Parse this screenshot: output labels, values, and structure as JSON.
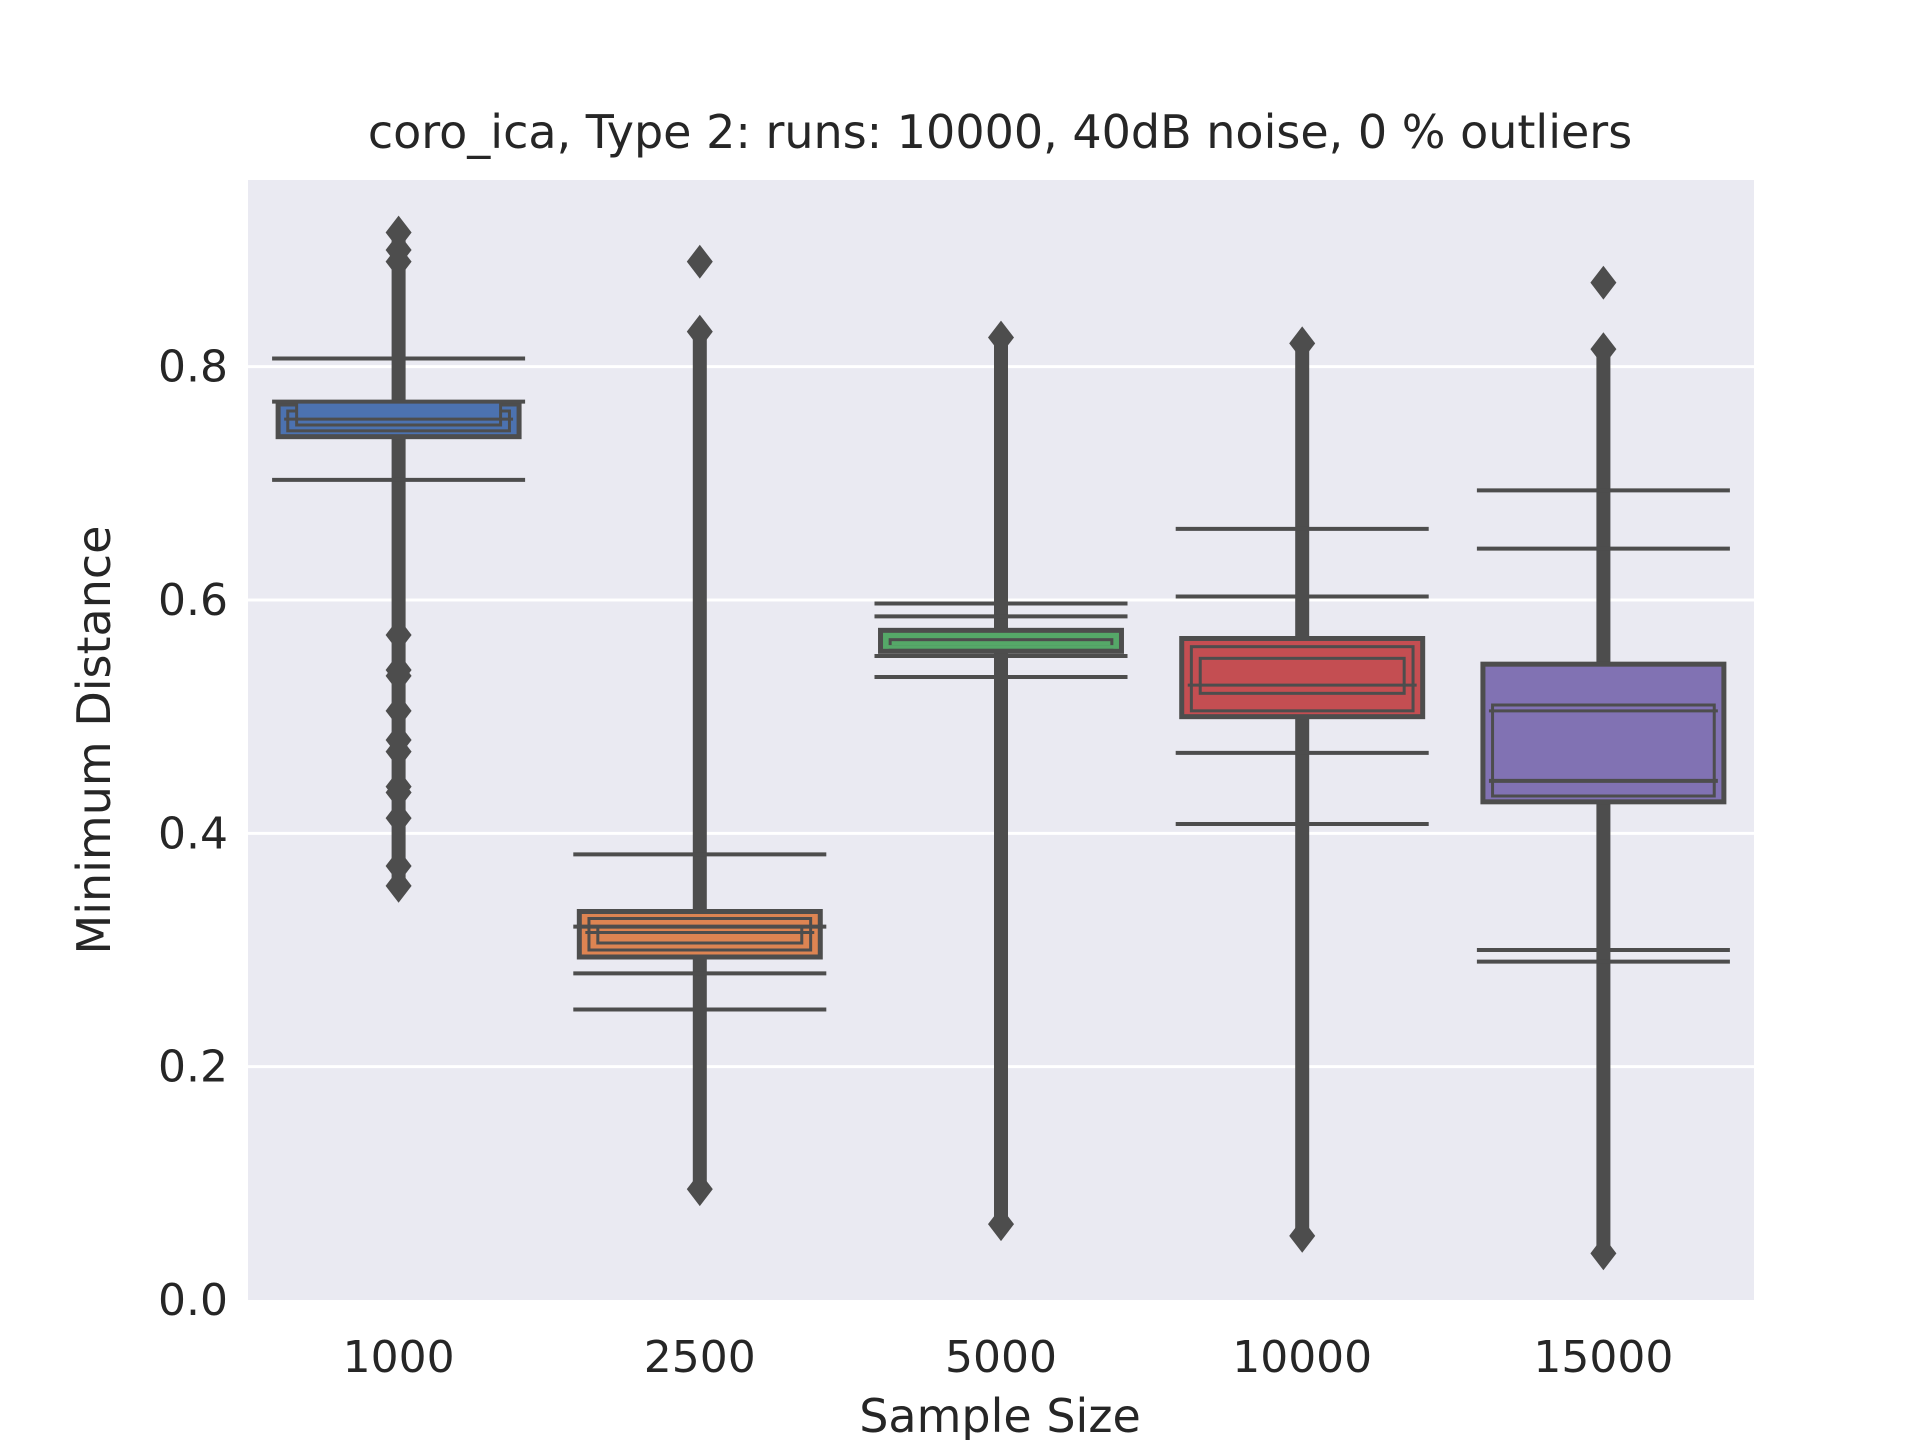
{
  "chart_data": {
    "type": "boxen",
    "title": "coro_ica,  Type 2:  runs: 10000, 40dB noise, 0 % outliers",
    "xlabel": "Sample Size",
    "ylabel": "Minimum Distance",
    "ylim": [
      0.0,
      0.96
    ],
    "yticks": [
      "0.0",
      "0.2",
      "0.4",
      "0.6",
      "0.8"
    ],
    "ytick_values": [
      0.0,
      0.2,
      0.4,
      0.6,
      0.8
    ],
    "grid": true,
    "background": "#eaeaf2",
    "categories": [
      "1000",
      "2500",
      "5000",
      "10000",
      "15000"
    ],
    "boxes": [
      {
        "category": "1000",
        "color": "#4c72b0",
        "levels": [
          [
            0.74,
            0.768
          ],
          [
            0.745,
            0.762
          ],
          [
            0.75,
            0.77
          ]
        ],
        "median": 0.755,
        "whisker_lines": [
          0.807,
          0.77,
          0.703
        ],
        "outlier_range": [
          0.36,
          0.915
        ],
        "outliers": [
          0.355,
          0.372,
          0.413,
          0.435,
          0.44,
          0.47,
          0.48,
          0.505,
          0.535,
          0.54,
          0.57,
          0.915,
          0.9,
          0.89
        ]
      },
      {
        "category": "2500",
        "color": "#dd8452",
        "levels": [
          [
            0.294,
            0.333
          ],
          [
            0.3,
            0.327
          ],
          [
            0.306,
            0.32
          ]
        ],
        "median": 0.315,
        "whisker_lines": [
          0.382,
          0.32,
          0.28,
          0.249
        ],
        "outlier_range": [
          0.095,
          0.83
        ],
        "outliers": [
          0.095,
          0.89,
          0.83
        ]
      },
      {
        "category": "5000",
        "color": "#55a868",
        "levels": [
          [
            0.556,
            0.574
          ],
          [
            0.56,
            0.566
          ]
        ],
        "median": 0.56,
        "whisker_lines": [
          0.597,
          0.586,
          0.552,
          0.534
        ],
        "outlier_range": [
          0.065,
          0.825
        ],
        "outliers": [
          0.065,
          0.825
        ]
      },
      {
        "category": "10000",
        "color": "#c44e52",
        "levels": [
          [
            0.5,
            0.567
          ],
          [
            0.505,
            0.56
          ],
          [
            0.52,
            0.55
          ]
        ],
        "median": 0.527,
        "whisker_lines": [
          0.661,
          0.603,
          0.469,
          0.408
        ],
        "outlier_range": [
          0.055,
          0.82
        ],
        "outliers": [
          0.055,
          0.82
        ]
      },
      {
        "category": "15000",
        "color": "#8172b3",
        "levels": [
          [
            0.427,
            0.545
          ],
          [
            0.432,
            0.51
          ]
        ],
        "median": 0.505,
        "extra_lines": [
          0.445
        ],
        "whisker_lines": [
          0.694,
          0.644,
          0.3,
          0.29
        ],
        "outlier_range": [
          0.04,
          0.815
        ],
        "outliers": [
          0.04,
          0.815,
          0.872
        ]
      }
    ]
  }
}
